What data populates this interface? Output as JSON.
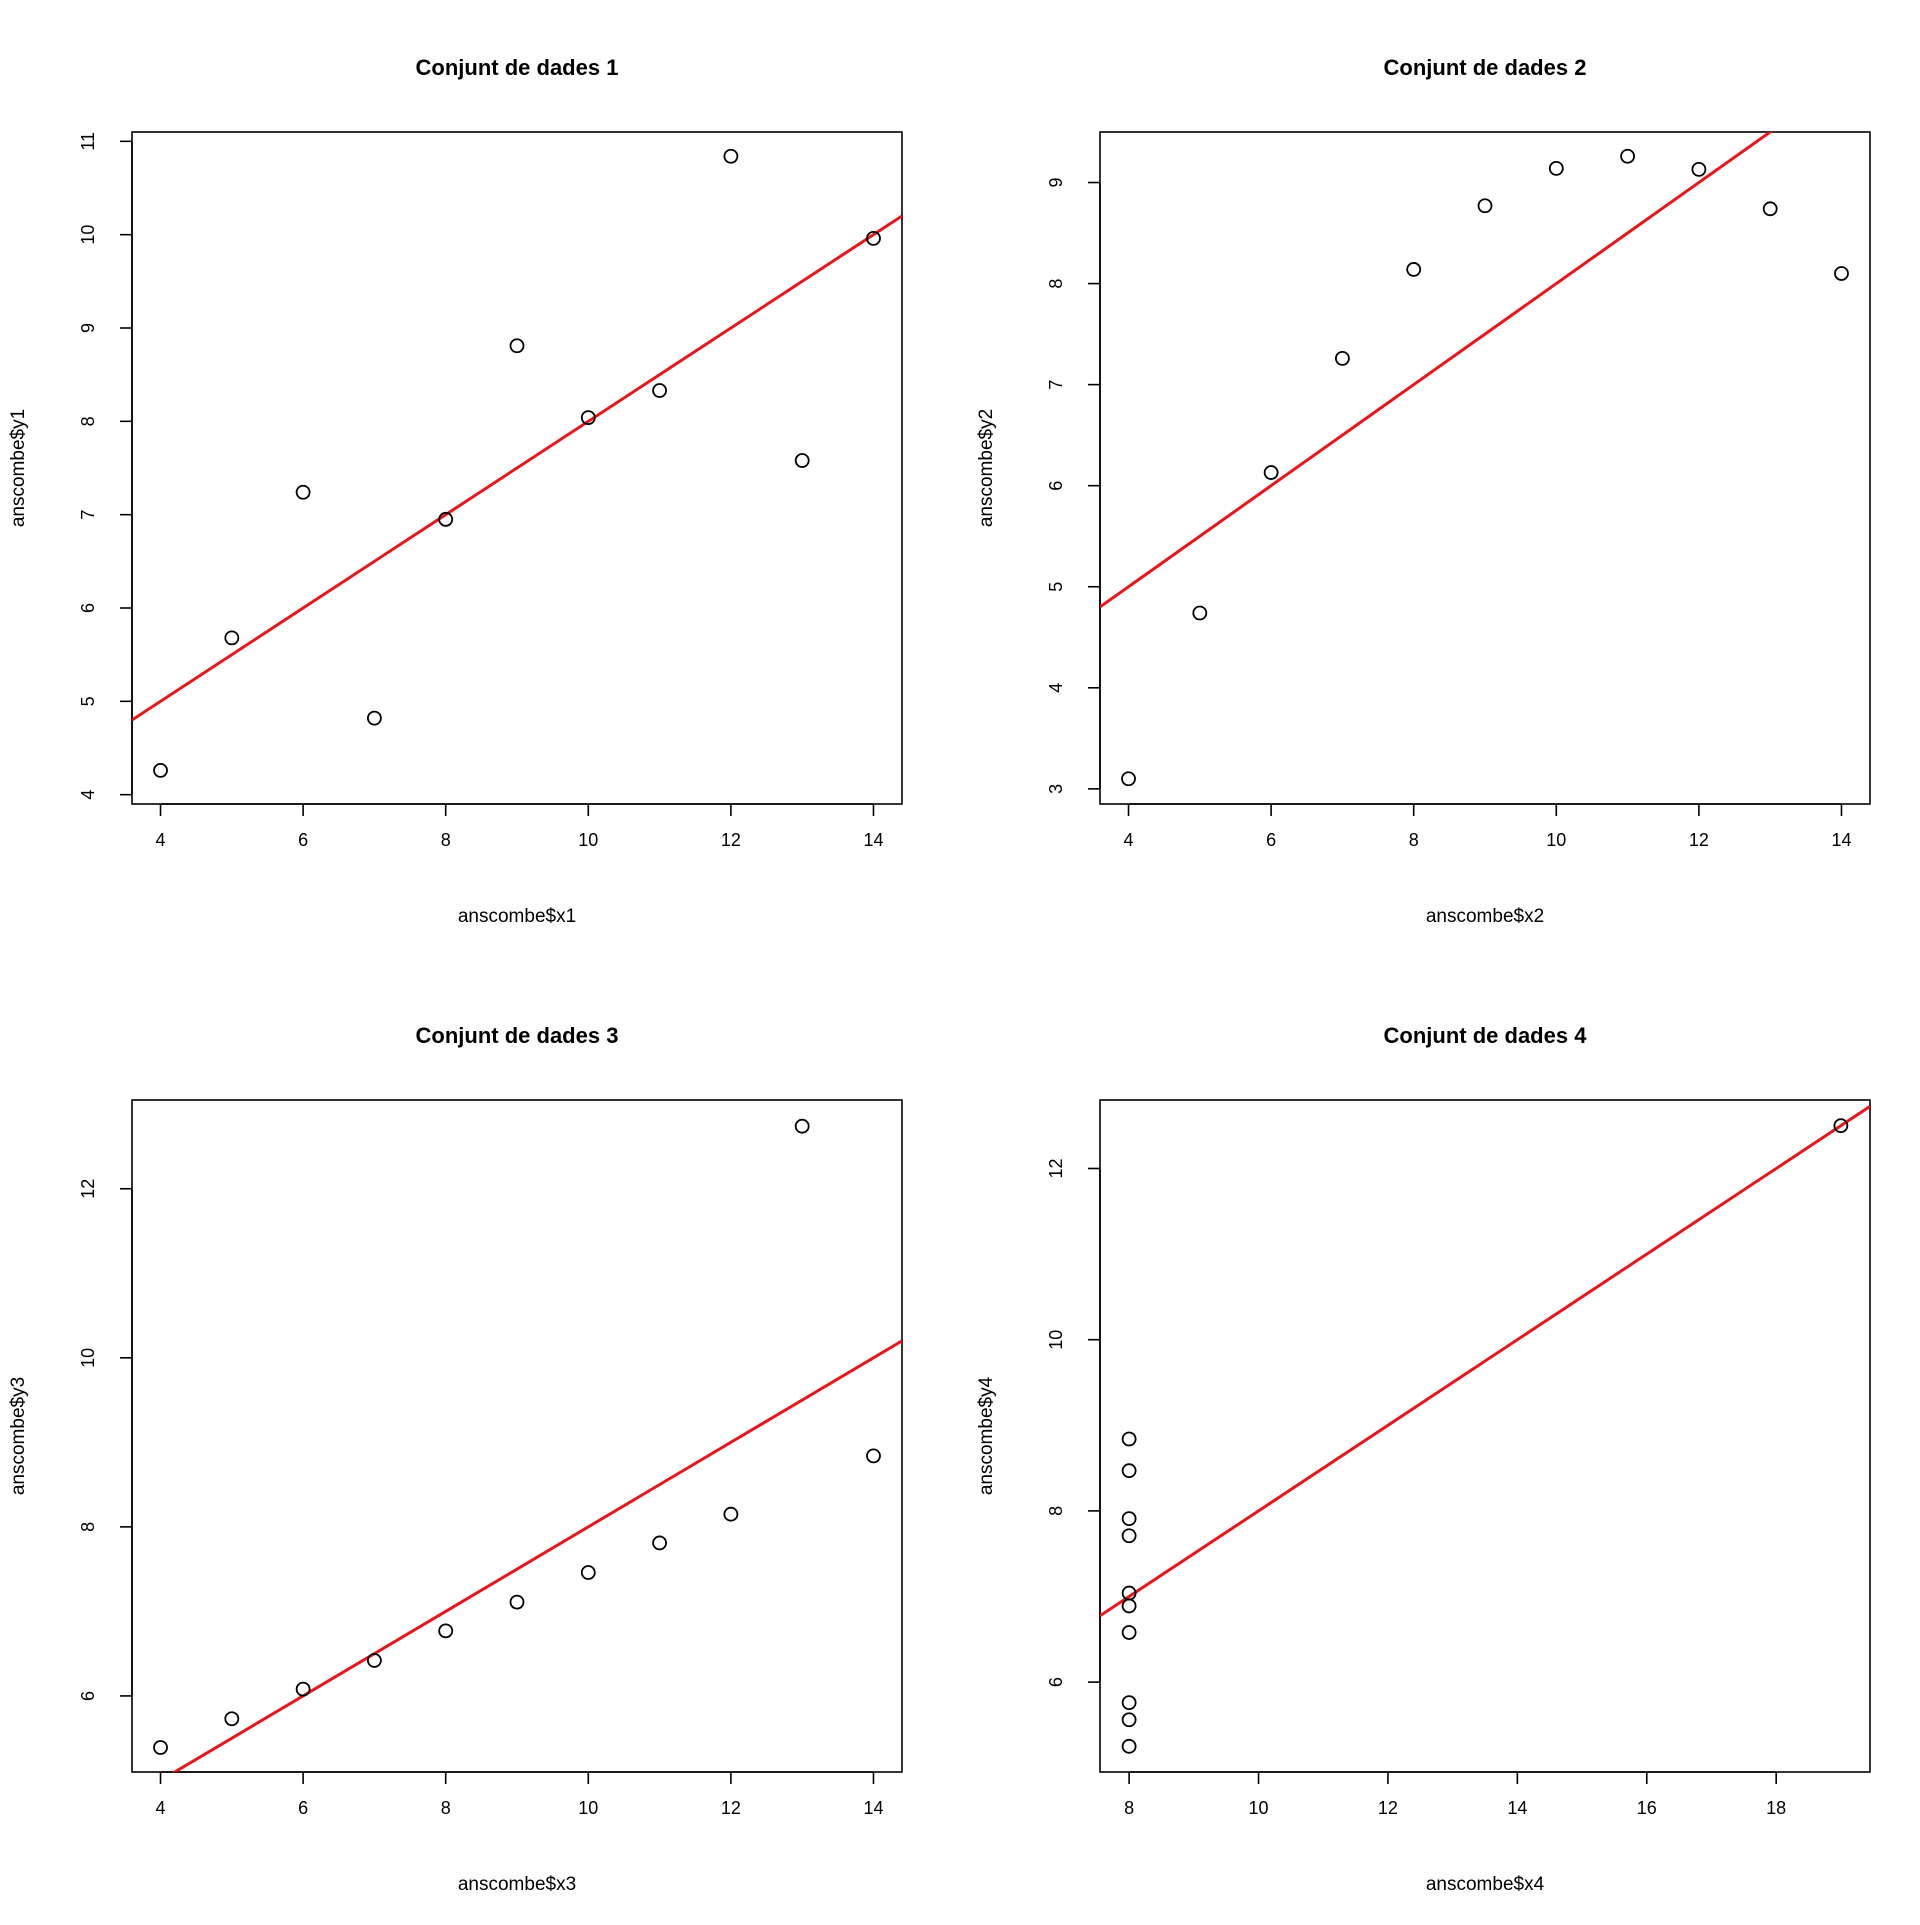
{
  "chart_data": [
    {
      "type": "scatter",
      "title": "Conjunt de dades 1",
      "xlabel": "anscombe$x1",
      "ylabel": "anscombe$y1",
      "xlim": [
        3.6,
        14.4
      ],
      "ylim": [
        3.9,
        11.1
      ],
      "xticks": [
        4,
        6,
        8,
        10,
        12,
        14
      ],
      "yticks": [
        4,
        5,
        6,
        7,
        8,
        9,
        10,
        11
      ],
      "x": [
        10,
        8,
        13,
        9,
        11,
        14,
        6,
        4,
        12,
        7,
        5
      ],
      "y": [
        8.04,
        6.95,
        7.58,
        8.81,
        8.33,
        9.96,
        7.24,
        4.26,
        10.84,
        4.82,
        5.68
      ],
      "fit_line": {
        "intercept": 3.0,
        "slope": 0.5,
        "color": "#e8161b"
      },
      "grid": false
    },
    {
      "type": "scatter",
      "title": "Conjunt de dades 2",
      "xlabel": "anscombe$x2",
      "ylabel": "anscombe$y2",
      "xlim": [
        3.6,
        14.4
      ],
      "ylim": [
        2.85,
        9.5
      ],
      "xticks": [
        4,
        6,
        8,
        10,
        12,
        14
      ],
      "yticks": [
        3,
        4,
        5,
        6,
        7,
        8,
        9
      ],
      "x": [
        10,
        8,
        13,
        9,
        11,
        14,
        6,
        4,
        12,
        7,
        5
      ],
      "y": [
        9.14,
        8.14,
        8.74,
        8.77,
        9.26,
        8.1,
        6.13,
        3.1,
        9.13,
        7.26,
        4.74
      ],
      "fit_line": {
        "intercept": 3.0,
        "slope": 0.5,
        "color": "#e8161b"
      },
      "grid": false
    },
    {
      "type": "scatter",
      "title": "Conjunt de dades 3",
      "xlabel": "anscombe$x3",
      "ylabel": "anscombe$y3",
      "xlim": [
        3.6,
        14.4
      ],
      "ylim": [
        5.1,
        13.05
      ],
      "xticks": [
        4,
        6,
        8,
        10,
        12,
        14
      ],
      "yticks": [
        6,
        8,
        10,
        12
      ],
      "x": [
        10,
        8,
        13,
        9,
        11,
        14,
        6,
        4,
        12,
        7,
        5
      ],
      "y": [
        7.46,
        6.77,
        12.74,
        7.11,
        7.81,
        8.84,
        6.08,
        5.39,
        8.15,
        6.42,
        5.73
      ],
      "fit_line": {
        "intercept": 3.0,
        "slope": 0.5,
        "color": "#e8161b"
      },
      "grid": false
    },
    {
      "type": "scatter",
      "title": "Conjunt de dades 4",
      "xlabel": "anscombe$x4",
      "ylabel": "anscombe$y4",
      "xlim": [
        7.55,
        19.45
      ],
      "ylim": [
        4.95,
        12.8
      ],
      "xticks": [
        8,
        10,
        12,
        14,
        16,
        18
      ],
      "yticks": [
        6,
        8,
        10,
        12
      ],
      "x": [
        8,
        8,
        8,
        8,
        8,
        8,
        8,
        19,
        8,
        8,
        8
      ],
      "y": [
        6.58,
        5.76,
        7.71,
        8.84,
        8.47,
        7.04,
        5.25,
        12.5,
        5.56,
        7.91,
        6.89
      ],
      "fit_line": {
        "intercept": 3.0,
        "slope": 0.5,
        "color": "#e8161b"
      },
      "grid": false
    }
  ]
}
